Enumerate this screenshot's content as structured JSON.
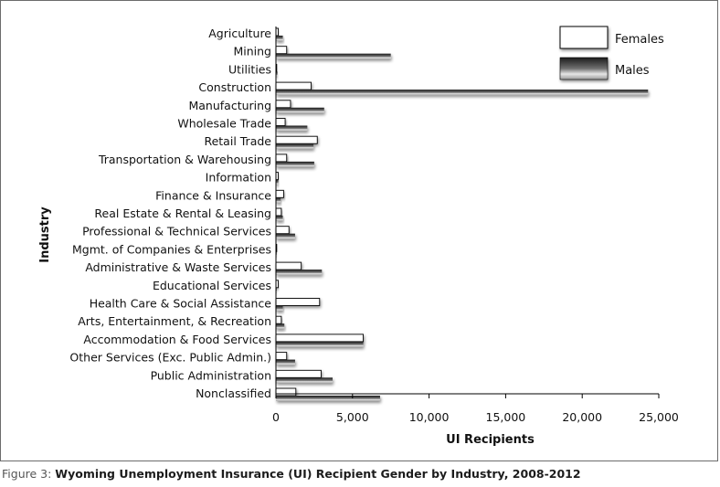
{
  "caption": {
    "label": "Figure 3:",
    "title": "Wyoming Unemployment Insurance (UI) Recipient Gender by Industry, 2008-2012"
  },
  "colors": {
    "females_fill": "#ffffff",
    "females_stroke": "#000000",
    "males_dark": "#1a1a1a",
    "males_light": "#d0d0d0",
    "shadow": "#bdbdbd"
  },
  "chart_data": {
    "type": "bar",
    "orientation": "horizontal",
    "title": "",
    "xlabel": "UI Recipients",
    "ylabel": "Industry",
    "xlim": [
      0,
      25000
    ],
    "xticks": [
      "0",
      "5,000",
      "10,000",
      "15,000",
      "20,000",
      "25,000"
    ],
    "xtick_values": [
      0,
      5000,
      10000,
      15000,
      20000,
      25000
    ],
    "grid": false,
    "legend_position": "top-right",
    "categories": [
      "Agriculture",
      "Mining",
      "Utilities",
      "Construction",
      "Manufacturing",
      "Wholesale Trade",
      "Retail Trade",
      "Transportation & Warehousing",
      "Information",
      "Finance & Insurance",
      "Real Estate & Rental & Leasing",
      "Professional & Technical Services",
      "Mgmt. of Companies & Enterprises",
      "Administrative & Waste Services",
      "Educational Services",
      "Health Care & Social Assistance",
      "Arts, Entertainment, & Recreation",
      "Accommodation & Food Services",
      "Other Services (Exc. Public Admin.)",
      "Public Administration",
      "Nonclassified"
    ],
    "series": [
      {
        "name": "Females",
        "values": [
          150,
          700,
          50,
          2300,
          950,
          600,
          2700,
          700,
          150,
          500,
          350,
          850,
          50,
          1650,
          150,
          2850,
          350,
          5700,
          700,
          2950,
          1300
        ]
      },
      {
        "name": "Males",
        "values": [
          450,
          7500,
          100,
          24300,
          3150,
          2050,
          2450,
          2500,
          150,
          300,
          450,
          1250,
          50,
          3000,
          50,
          450,
          550,
          5700,
          1250,
          3700,
          6800
        ]
      }
    ]
  }
}
